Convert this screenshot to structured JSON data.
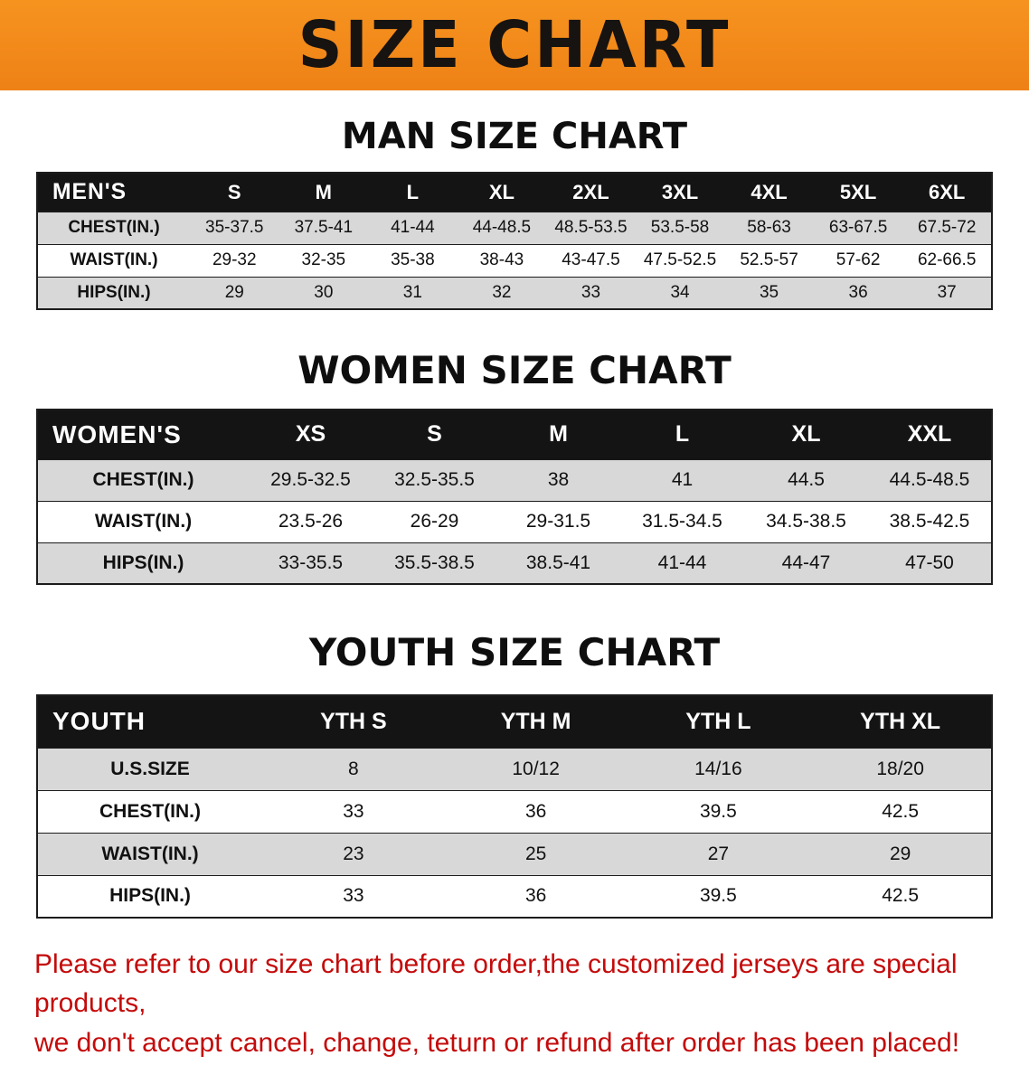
{
  "banner": {
    "title": "SIZE CHART",
    "bg_color": "#f08a1c",
    "text_color": "#171310"
  },
  "colors": {
    "table_header_bg": "#141414",
    "table_row_gray": "#d8d8d8",
    "note_red": "#c40a0a"
  },
  "sections": [
    {
      "heading": "MAN SIZE CHART",
      "table": {
        "header": [
          "MEN'S",
          "S",
          "M",
          "L",
          "XL",
          "2XL",
          "3XL",
          "4XL",
          "5XL",
          "6XL"
        ],
        "rows": [
          [
            "CHEST(IN.)",
            "35-37.5",
            "37.5-41",
            "41-44",
            "44-48.5",
            "48.5-53.5",
            "53.5-58",
            "58-63",
            "63-67.5",
            "67.5-72"
          ],
          [
            "WAIST(IN.)",
            "29-32",
            "32-35",
            "35-38",
            "38-43",
            "43-47.5",
            "47.5-52.5",
            "52.5-57",
            "57-62",
            "62-66.5"
          ],
          [
            "HIPS(IN.)",
            "29",
            "30",
            "31",
            "32",
            "33",
            "34",
            "35",
            "36",
            "37"
          ]
        ]
      }
    },
    {
      "heading": "WOMEN SIZE CHART",
      "table": {
        "header": [
          "WOMEN'S",
          "XS",
          "S",
          "M",
          "L",
          "XL",
          "XXL"
        ],
        "rows": [
          [
            "CHEST(IN.)",
            "29.5-32.5",
            "32.5-35.5",
            "38",
            "41",
            "44.5",
            "44.5-48.5"
          ],
          [
            "WAIST(IN.)",
            "23.5-26",
            "26-29",
            "29-31.5",
            "31.5-34.5",
            "34.5-38.5",
            "38.5-42.5"
          ],
          [
            "HIPS(IN.)",
            "33-35.5",
            "35.5-38.5",
            "38.5-41",
            "41-44",
            "44-47",
            "47-50"
          ]
        ]
      }
    },
    {
      "heading": "YOUTH SIZE CHART",
      "table": {
        "header": [
          "YOUTH",
          "YTH S",
          "YTH M",
          "YTH L",
          "YTH XL"
        ],
        "rows": [
          [
            "U.S.SIZE",
            "8",
            "10/12",
            "14/16",
            "18/20"
          ],
          [
            "CHEST(IN.)",
            "33",
            "36",
            "39.5",
            "42.5"
          ],
          [
            "WAIST(IN.)",
            "23",
            "25",
            "27",
            "29"
          ],
          [
            "HIPS(IN.)",
            "33",
            "36",
            "39.5",
            "42.5"
          ]
        ]
      }
    }
  ],
  "note": {
    "lines": [
      "Please refer to our size chart before order,the customized jerseys are special products,",
      "we don't accept cancel, change, teturn or refund after order has been placed!"
    ]
  }
}
